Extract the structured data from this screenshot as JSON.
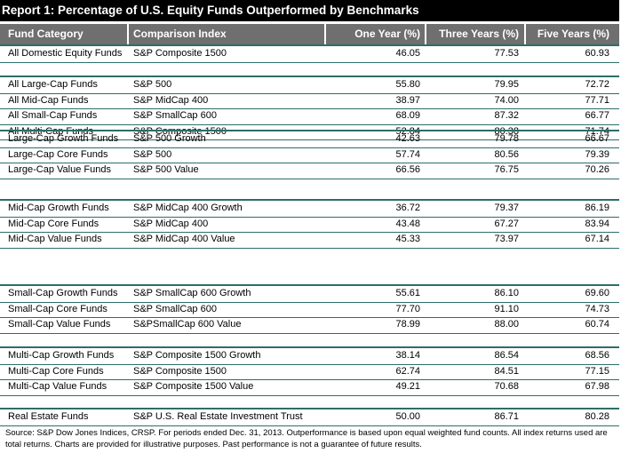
{
  "title": "Report 1: Percentage of U.S. Equity Funds Outperformed by Benchmarks",
  "headers": {
    "category": "Fund Category",
    "index": "Comparison Index",
    "one_year": "One Year (%)",
    "three_years": "Three Years (%)",
    "five_years": "Five Years (%)"
  },
  "rows": [
    {
      "category": "All Domestic Equity Funds",
      "index": "S&P Composite 1500",
      "one_year": "46.05",
      "three_years": "77.53",
      "five_years": "60.93"
    },
    {
      "category": "All Large-Cap Funds",
      "index": "S&P 500",
      "one_year": "55.80",
      "three_years": "79.95",
      "five_years": "72.72"
    },
    {
      "category": "All Mid-Cap Funds",
      "index": "S&P MidCap 400",
      "one_year": "38.97",
      "three_years": "74.00",
      "five_years": "77.71"
    },
    {
      "category": "All Small-Cap Funds",
      "index": "S&P SmallCap 600",
      "one_year": "68.09",
      "three_years": "87.32",
      "five_years": "66.77"
    },
    {
      "category": "All Multi-Cap Funds",
      "index": "S&P Composite 1500",
      "one_year": "52.84",
      "three_years": "80.38",
      "five_years": "71.74"
    },
    {
      "category": "Large-Cap Growth Funds",
      "index": "S&P 500 Growth",
      "one_year": "42.63",
      "three_years": "79.78",
      "five_years": "66.67"
    },
    {
      "category": "Large-Cap Core Funds",
      "index": "S&P 500",
      "one_year": "57.74",
      "three_years": "80.56",
      "five_years": "79.39"
    },
    {
      "category": "Large-Cap Value Funds",
      "index": "S&P 500 Value",
      "one_year": "66.56",
      "three_years": "76.75",
      "five_years": "70.26"
    },
    {
      "category": "Mid-Cap Growth Funds",
      "index": "S&P MidCap 400 Growth",
      "one_year": "36.72",
      "three_years": "79.37",
      "five_years": "86.19"
    },
    {
      "category": "Mid-Cap Core Funds",
      "index": "S&P MidCap 400",
      "one_year": "43.48",
      "three_years": "67.27",
      "five_years": "83.94"
    },
    {
      "category": "Mid-Cap Value Funds",
      "index": "S&P MidCap 400 Value",
      "one_year": "45.33",
      "three_years": "73.97",
      "five_years": "67.14"
    },
    {
      "category": "Small-Cap Growth Funds",
      "index": "S&P SmallCap 600 Growth",
      "one_year": "55.61",
      "three_years": "86.10",
      "five_years": "69.60"
    },
    {
      "category": "Small-Cap Core Funds",
      "index": "S&P SmallCap 600",
      "one_year": "77.70",
      "three_years": "91.10",
      "five_years": "74.73"
    },
    {
      "category": "Small-Cap Value Funds",
      "index": "S&PSmallCap 600 Value",
      "one_year": "78.99",
      "three_years": "88.00",
      "five_years": "60.74"
    },
    {
      "category": "Multi-Cap Growth Funds",
      "index": "S&P Composite 1500 Growth",
      "one_year": "38.14",
      "three_years": "86.54",
      "five_years": "68.56"
    },
    {
      "category": "Multi-Cap Core Funds",
      "index": "S&P Composite 1500",
      "one_year": "62.74",
      "three_years": "84.51",
      "five_years": "77.15"
    },
    {
      "category": "Multi-Cap Value Funds",
      "index": "S&P Composite 1500 Value",
      "one_year": "49.21",
      "three_years": "70.68",
      "five_years": "67.98"
    },
    {
      "category": "Real Estate Funds",
      "index": "S&P U.S. Real Estate Investment Trust",
      "one_year": "50.00",
      "three_years": "86.71",
      "five_years": "80.28"
    }
  ],
  "footnote": "Source: S&P Dow Jones Indices, CRSP.  For periods ended Dec. 31, 2013.  Outperformance is based upon equal weighted fund counts.  All index returns used are total returns.  Charts are provided for illustrative purposes.  Past performance is not a guarantee of future results."
}
